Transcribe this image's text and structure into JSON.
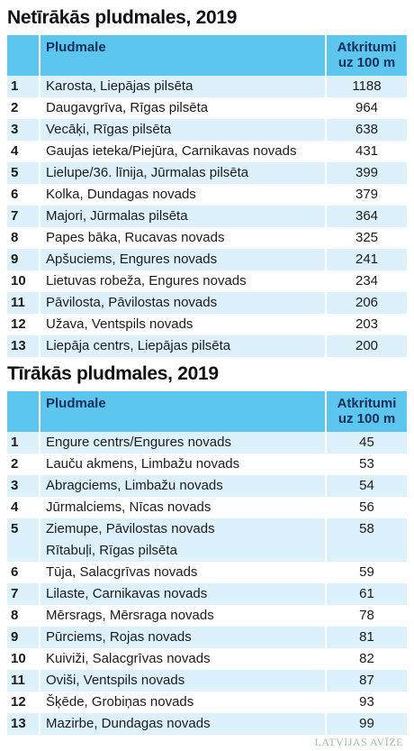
{
  "tables": [
    {
      "title": "Netīrākās pludmales, 2019",
      "header": {
        "name": "Pludmale",
        "value": [
          "Atkritumi",
          "uz 100 m"
        ]
      },
      "rows": [
        {
          "rank": 1,
          "names": [
            "Karosta, Liepājas pilsēta"
          ],
          "value": 1188
        },
        {
          "rank": 2,
          "names": [
            "Daugavgrīva, Rīgas pilsēta"
          ],
          "value": 964
        },
        {
          "rank": 3,
          "names": [
            "Vecāķi, Rīgas pilsēta"
          ],
          "value": 638
        },
        {
          "rank": 4,
          "names": [
            "Gaujas ieteka/Piejūra, Carnikavas novads"
          ],
          "value": 431
        },
        {
          "rank": 5,
          "names": [
            "Lielupe/36. līnija, Jūrmalas pilsēta"
          ],
          "value": 399
        },
        {
          "rank": 6,
          "names": [
            "Kolka, Dundagas novads"
          ],
          "value": 379
        },
        {
          "rank": 7,
          "names": [
            "Majori, Jūrmalas pilsēta"
          ],
          "value": 364
        },
        {
          "rank": 8,
          "names": [
            "Papes bāka, Rucavas novads"
          ],
          "value": 325
        },
        {
          "rank": 9,
          "names": [
            "Apšuciems, Engures novads"
          ],
          "value": 241
        },
        {
          "rank": 10,
          "names": [
            "Lietuvas robeža, Engures novads"
          ],
          "value": 234
        },
        {
          "rank": 11,
          "names": [
            "Pāvilosta, Pāvilostas novads"
          ],
          "value": 206
        },
        {
          "rank": 12,
          "names": [
            "Užava, Ventspils novads"
          ],
          "value": 203
        },
        {
          "rank": 13,
          "names": [
            "Liepāja centrs, Liepājas pilsēta"
          ],
          "value": 200
        }
      ]
    },
    {
      "title": "Tīrākās pludmales, 2019",
      "header": {
        "name": "Pludmale",
        "value": [
          "Atkritumi",
          "uz 100 m"
        ]
      },
      "rows": [
        {
          "rank": 1,
          "names": [
            "Engure centrs/Engures novads"
          ],
          "value": 45
        },
        {
          "rank": 2,
          "names": [
            "Lauču akmens, Limbažu novads"
          ],
          "value": 53
        },
        {
          "rank": 3,
          "names": [
            "Abragciems, Limbažu novads"
          ],
          "value": 54
        },
        {
          "rank": 4,
          "names": [
            "Jūrmalciems, Nīcas novads"
          ],
          "value": 56
        },
        {
          "rank": 5,
          "names": [
            "Ziemupe, Pāvilostas novads",
            "Rītabuļi, Rīgas pilsēta"
          ],
          "value": 58
        },
        {
          "rank": 6,
          "names": [
            "Tūja, Salacgrīvas novads"
          ],
          "value": 59
        },
        {
          "rank": 7,
          "names": [
            "Lilaste, Carnikavas novads"
          ],
          "value": 61
        },
        {
          "rank": 8,
          "names": [
            "Mērsrags, Mērsraga novads"
          ],
          "value": 78
        },
        {
          "rank": 9,
          "names": [
            "Pūrciems, Rojas novads"
          ],
          "value": 81
        },
        {
          "rank": 10,
          "names": [
            "Kuiviži, Salacgrīvas novads"
          ],
          "value": 82
        },
        {
          "rank": 11,
          "names": [
            "Oviši, Ventspils novads"
          ],
          "value": 87
        },
        {
          "rank": 12,
          "names": [
            "Šķēde, Grobiņas novads"
          ],
          "value": 93
        },
        {
          "rank": 13,
          "names": [
            "Mazirbe, Dundagas novads"
          ],
          "value": 99
        }
      ]
    }
  ],
  "footer": "LATVIJAS AVĪZE"
}
